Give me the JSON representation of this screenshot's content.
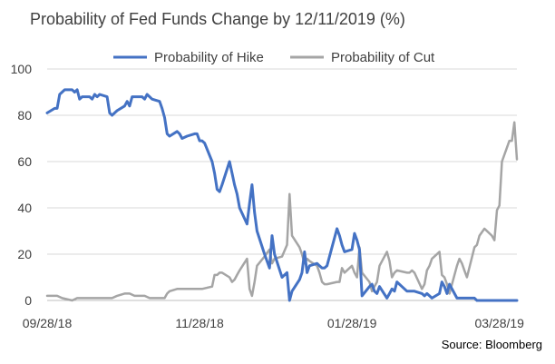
{
  "chart_data": {
    "type": "line",
    "title": "Probability of Fed Funds Change by 12/11/2019 (%)",
    "source": "Source: Bloomberg",
    "xlabel": "",
    "ylabel": "",
    "ylim": [
      0,
      100
    ],
    "yticks": [
      0,
      20,
      40,
      60,
      80,
      100
    ],
    "xlim": [
      "09/28/18",
      "04/04/19"
    ],
    "xticks": [
      "09/28/18",
      "11/28/18",
      "01/28/19",
      "03/28/19"
    ],
    "grid": "horizontal",
    "legend": "top",
    "colors": {
      "hike": "#4472c4",
      "cut": "#a5a5a5"
    },
    "series": [
      {
        "name": "Probability of Hike",
        "color": "#4472c4",
        "points": [
          [
            "09/28/18",
            81
          ],
          [
            "10/01/18",
            83
          ],
          [
            "10/02/18",
            83
          ],
          [
            "10/03/18",
            89
          ],
          [
            "10/04/18",
            90
          ],
          [
            "10/05/18",
            91
          ],
          [
            "10/08/18",
            91
          ],
          [
            "10/09/18",
            90
          ],
          [
            "10/10/18",
            91
          ],
          [
            "10/11/18",
            87
          ],
          [
            "10/12/18",
            88
          ],
          [
            "10/15/18",
            88
          ],
          [
            "10/16/18",
            87
          ],
          [
            "10/17/18",
            89
          ],
          [
            "10/18/18",
            88
          ],
          [
            "10/19/18",
            89
          ],
          [
            "10/22/18",
            88
          ],
          [
            "10/23/18",
            81
          ],
          [
            "10/24/18",
            80
          ],
          [
            "10/25/18",
            81
          ],
          [
            "10/26/18",
            82
          ],
          [
            "10/29/18",
            84
          ],
          [
            "10/30/18",
            86
          ],
          [
            "10/31/18",
            84
          ],
          [
            "11/01/18",
            88
          ],
          [
            "11/02/18",
            88
          ],
          [
            "11/05/18",
            88
          ],
          [
            "11/06/18",
            87
          ],
          [
            "11/07/18",
            89
          ],
          [
            "11/08/18",
            88
          ],
          [
            "11/09/18",
            87
          ],
          [
            "11/12/18",
            86
          ],
          [
            "11/13/18",
            83
          ],
          [
            "11/14/18",
            79
          ],
          [
            "11/15/18",
            72
          ],
          [
            "11/16/18",
            71
          ],
          [
            "11/19/18",
            73
          ],
          [
            "11/20/18",
            72
          ],
          [
            "11/21/18",
            70
          ],
          [
            "11/23/18",
            71
          ],
          [
            "11/26/18",
            72
          ],
          [
            "11/27/18",
            72
          ],
          [
            "11/28/18",
            69
          ],
          [
            "11/29/18",
            69
          ],
          [
            "11/30/18",
            68
          ],
          [
            "12/03/18",
            60
          ],
          [
            "12/04/18",
            55
          ],
          [
            "12/05/18",
            48
          ],
          [
            "12/06/18",
            47
          ],
          [
            "12/07/18",
            50
          ],
          [
            "12/10/18",
            60
          ],
          [
            "12/11/18",
            55
          ],
          [
            "12/12/18",
            50
          ],
          [
            "12/13/18",
            46
          ],
          [
            "12/14/18",
            40
          ],
          [
            "12/17/18",
            33
          ],
          [
            "12/18/18",
            42
          ],
          [
            "12/19/18",
            50
          ],
          [
            "12/20/18",
            38
          ],
          [
            "12/21/18",
            30
          ],
          [
            "12/24/18",
            20
          ],
          [
            "12/26/18",
            14
          ],
          [
            "12/27/18",
            28
          ],
          [
            "12/28/18",
            20
          ],
          [
            "12/31/18",
            10
          ],
          [
            "01/02/19",
            12
          ],
          [
            "01/03/19",
            0
          ],
          [
            "01/04/19",
            4
          ],
          [
            "01/07/19",
            9
          ],
          [
            "01/08/19",
            12
          ],
          [
            "01/09/19",
            21
          ],
          [
            "01/10/19",
            12
          ],
          [
            "01/11/19",
            15
          ],
          [
            "01/14/19",
            16
          ],
          [
            "01/15/19",
            15
          ],
          [
            "01/16/19",
            14
          ],
          [
            "01/17/19",
            14
          ],
          [
            "01/18/19",
            15
          ],
          [
            "01/22/19",
            31
          ],
          [
            "01/23/19",
            28
          ],
          [
            "01/24/19",
            24
          ],
          [
            "01/25/19",
            21
          ],
          [
            "01/28/19",
            22
          ],
          [
            "01/29/19",
            29
          ],
          [
            "01/30/19",
            26
          ],
          [
            "01/31/19",
            22
          ],
          [
            "02/01/19",
            2
          ],
          [
            "02/04/19",
            6
          ],
          [
            "02/05/19",
            7
          ],
          [
            "02/06/19",
            4
          ],
          [
            "02/07/19",
            3
          ],
          [
            "02/08/19",
            6
          ],
          [
            "02/11/19",
            1
          ],
          [
            "02/12/19",
            3
          ],
          [
            "02/13/19",
            5
          ],
          [
            "02/14/19",
            4
          ],
          [
            "02/15/19",
            8
          ],
          [
            "02/19/19",
            4
          ],
          [
            "02/20/19",
            4
          ],
          [
            "02/21/19",
            4
          ],
          [
            "02/22/19",
            4
          ],
          [
            "02/25/19",
            3
          ],
          [
            "02/26/19",
            2
          ],
          [
            "02/27/19",
            3
          ],
          [
            "02/28/19",
            2
          ],
          [
            "03/01/19",
            1
          ],
          [
            "03/04/19",
            3
          ],
          [
            "03/05/19",
            8
          ],
          [
            "03/06/19",
            6
          ],
          [
            "03/07/19",
            3
          ],
          [
            "03/08/19",
            7
          ],
          [
            "03/11/19",
            1
          ],
          [
            "03/12/19",
            1
          ],
          [
            "03/13/19",
            1
          ],
          [
            "03/14/19",
            1
          ],
          [
            "03/15/19",
            1
          ],
          [
            "03/18/19",
            1
          ],
          [
            "03/19/19",
            0
          ],
          [
            "03/20/19",
            0
          ],
          [
            "03/22/19",
            0
          ],
          [
            "03/25/19",
            0
          ],
          [
            "03/28/19",
            0
          ],
          [
            "04/01/19",
            0
          ],
          [
            "04/04/19",
            0
          ]
        ]
      },
      {
        "name": "Probability of Cut",
        "color": "#a5a5a5",
        "points": [
          [
            "09/28/18",
            2
          ],
          [
            "10/02/18",
            2
          ],
          [
            "10/04/18",
            1
          ],
          [
            "10/08/18",
            0
          ],
          [
            "10/10/18",
            1
          ],
          [
            "10/12/18",
            1
          ],
          [
            "10/16/18",
            1
          ],
          [
            "10/18/18",
            1
          ],
          [
            "10/22/18",
            1
          ],
          [
            "10/24/18",
            1
          ],
          [
            "10/26/18",
            2
          ],
          [
            "10/29/18",
            3
          ],
          [
            "10/31/18",
            3
          ],
          [
            "11/02/18",
            2
          ],
          [
            "11/06/18",
            2
          ],
          [
            "11/08/18",
            1
          ],
          [
            "11/12/18",
            1
          ],
          [
            "11/14/18",
            1
          ],
          [
            "11/15/18",
            3
          ],
          [
            "11/16/18",
            4
          ],
          [
            "11/19/18",
            5
          ],
          [
            "11/21/18",
            5
          ],
          [
            "11/23/18",
            5
          ],
          [
            "11/27/18",
            5
          ],
          [
            "11/29/18",
            5
          ],
          [
            "12/03/18",
            6
          ],
          [
            "12/04/18",
            11
          ],
          [
            "12/05/18",
            11
          ],
          [
            "12/06/18",
            12
          ],
          [
            "12/07/18",
            12
          ],
          [
            "12/10/18",
            10
          ],
          [
            "12/11/18",
            8
          ],
          [
            "12/12/18",
            9
          ],
          [
            "12/13/18",
            11
          ],
          [
            "12/14/18",
            13
          ],
          [
            "12/17/18",
            18
          ],
          [
            "12/18/18",
            5
          ],
          [
            "12/19/18",
            2
          ],
          [
            "12/20/18",
            8
          ],
          [
            "12/21/18",
            15
          ],
          [
            "12/24/18",
            19
          ],
          [
            "12/26/18",
            22
          ],
          [
            "12/27/18",
            16
          ],
          [
            "12/28/18",
            18
          ],
          [
            "12/31/18",
            19
          ],
          [
            "01/02/19",
            24
          ],
          [
            "01/03/19",
            46
          ],
          [
            "01/04/19",
            28
          ],
          [
            "01/07/19",
            23
          ],
          [
            "01/08/19",
            20
          ],
          [
            "01/09/19",
            16
          ],
          [
            "01/10/19",
            18
          ],
          [
            "01/11/19",
            17
          ],
          [
            "01/14/19",
            15
          ],
          [
            "01/15/19",
            12
          ],
          [
            "01/16/19",
            8
          ],
          [
            "01/17/19",
            7
          ],
          [
            "01/18/19",
            7
          ],
          [
            "01/22/19",
            8
          ],
          [
            "01/23/19",
            8
          ],
          [
            "01/24/19",
            14
          ],
          [
            "01/25/19",
            12
          ],
          [
            "01/28/19",
            15
          ],
          [
            "01/29/19",
            12
          ],
          [
            "01/30/19",
            10
          ],
          [
            "01/31/19",
            23
          ],
          [
            "02/01/19",
            12
          ],
          [
            "02/04/19",
            8
          ],
          [
            "02/05/19",
            4
          ],
          [
            "02/06/19",
            6
          ],
          [
            "02/07/19",
            8
          ],
          [
            "02/08/19",
            15
          ],
          [
            "02/11/19",
            21
          ],
          [
            "02/12/19",
            17
          ],
          [
            "02/13/19",
            10
          ],
          [
            "02/14/19",
            12
          ],
          [
            "02/15/19",
            13
          ],
          [
            "02/19/19",
            12
          ],
          [
            "02/20/19",
            12
          ],
          [
            "02/21/19",
            13
          ],
          [
            "02/22/19",
            12
          ],
          [
            "02/25/19",
            5
          ],
          [
            "02/26/19",
            7
          ],
          [
            "02/27/19",
            13
          ],
          [
            "02/28/19",
            15
          ],
          [
            "03/01/19",
            18
          ],
          [
            "03/04/19",
            21
          ],
          [
            "03/05/19",
            11
          ],
          [
            "03/06/19",
            10
          ],
          [
            "03/07/19",
            7
          ],
          [
            "03/08/19",
            3
          ],
          [
            "03/11/19",
            15
          ],
          [
            "03/12/19",
            18
          ],
          [
            "03/13/19",
            16
          ],
          [
            "03/14/19",
            13
          ],
          [
            "03/15/19",
            10
          ],
          [
            "03/18/19",
            23
          ],
          [
            "03/19/19",
            24
          ],
          [
            "03/20/19",
            28
          ],
          [
            "03/22/19",
            31
          ],
          [
            "03/25/19",
            28
          ],
          [
            "03/26/19",
            26
          ],
          [
            "03/27/19",
            39
          ],
          [
            "03/28/19",
            41
          ],
          [
            "03/29/19",
            60
          ],
          [
            "04/01/19",
            69
          ],
          [
            "04/02/19",
            69
          ],
          [
            "04/03/19",
            77
          ],
          [
            "04/04/19",
            61
          ]
        ]
      }
    ]
  }
}
